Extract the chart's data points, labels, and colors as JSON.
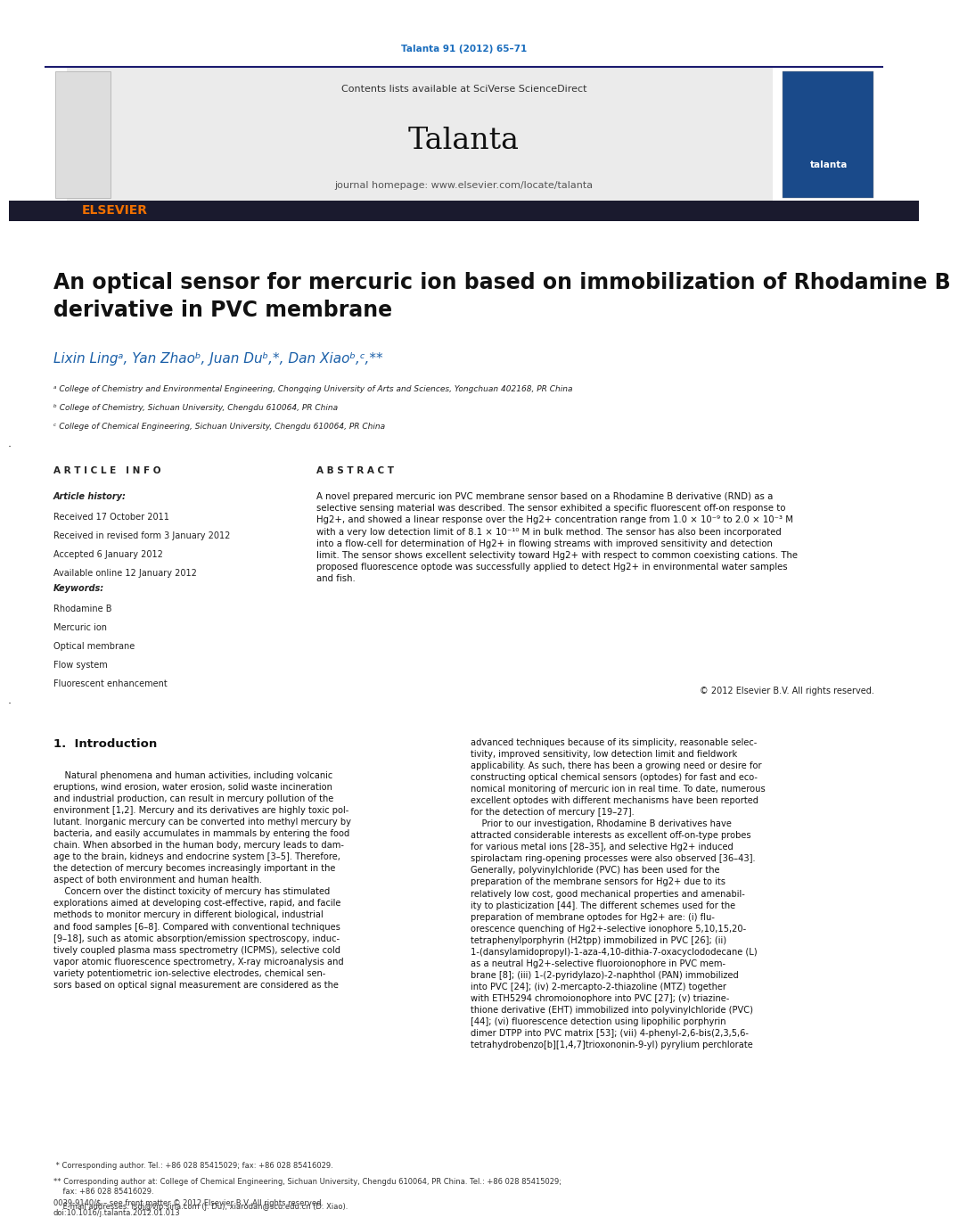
{
  "page_width": 10.21,
  "page_height": 13.51,
  "bg_color": "#ffffff",
  "journal_cite": "Talanta 91 (2012) 65–71",
  "journal_cite_color": "#1a6dbd",
  "header_bg": "#ebebeb",
  "header_text_plain": "Contents lists available at ",
  "header_sciverse": "SciVerse ScienceDirect",
  "header_sciverse_color": "#1a6dbd",
  "journal_name": "Talanta",
  "journal_homepage_plain": "journal homepage: ",
  "journal_homepage_url": "www.elsevier.com/locate/talanta",
  "journal_homepage_url_color": "#1a6dbd",
  "dark_bar_color": "#1a1a2e",
  "elsevier_color": "#f07000",
  "title": "An optical sensor for mercuric ion based on immobilization of Rhodamine B\nderivative in PVC membrane",
  "title_fontsize": 17,
  "authors_line": "Lixin Lingᵃ, Yan Zhaoᵇ, Juan Duᵇ,*, Dan Xiaoᵇ,ᶜ,**",
  "affil_a": "ᵃ College of Chemistry and Environmental Engineering, Chongqing University of Arts and Sciences, Yongchuan 402168, PR China",
  "affil_b": "ᵇ College of Chemistry, Sichuan University, Chengdu 610064, PR China",
  "affil_c": "ᶜ College of Chemical Engineering, Sichuan University, Chengdu 610064, PR China",
  "section_article_info": "A R T I C L E   I N F O",
  "section_abstract": "A B S T R A C T",
  "article_history_label": "Article history:",
  "received1": "Received 17 October 2011",
  "received2": "Received in revised form 3 January 2012",
  "accepted": "Accepted 6 January 2012",
  "available": "Available online 12 January 2012",
  "keywords_label": "Keywords:",
  "kw1": "Rhodamine B",
  "kw2": "Mercuric ion",
  "kw3": "Optical membrane",
  "kw4": "Flow system",
  "kw5": "Fluorescent enhancement",
  "abstract_text": "A novel prepared mercuric ion PVC membrane sensor based on a Rhodamine B derivative (RND) as a\nselective sensing material was described. The sensor exhibited a specific fluorescent off-on response to\nHg2+, and showed a linear response over the Hg2+ concentration range from 1.0 × 10⁻⁹ to 2.0 × 10⁻³ M\nwith a very low detection limit of 8.1 × 10⁻¹⁰ M in bulk method. The sensor has also been incorporated\ninto a flow-cell for determination of Hg2+ in flowing streams with improved sensitivity and detection\nlimit. The sensor shows excellent selectivity toward Hg2+ with respect to common coexisting cations. The\nproposed fluorescence optode was successfully applied to detect Hg2+ in environmental water samples\nand fish.",
  "copyright": "© 2012 Elsevier B.V. All rights reserved.",
  "intro_heading": "1.  Introduction",
  "intro_col1": "    Natural phenomena and human activities, including volcanic\neruptions, wind erosion, water erosion, solid waste incineration\nand industrial production, can result in mercury pollution of the\nenvironment [1,2]. Mercury and its derivatives are highly toxic pol-\nlutant. Inorganic mercury can be converted into methyl mercury by\nbacteria, and easily accumulates in mammals by entering the food\nchain. When absorbed in the human body, mercury leads to dam-\nage to the brain, kidneys and endocrine system [3–5]. Therefore,\nthe detection of mercury becomes increasingly important in the\naspect of both environment and human health.\n    Concern over the distinct toxicity of mercury has stimulated\nexplorations aimed at developing cost-effective, rapid, and facile\nmethods to monitor mercury in different biological, industrial\nand food samples [6–8]. Compared with conventional techniques\n[9–18], such as atomic absorption/emission spectroscopy, induc-\ntively coupled plasma mass spectrometry (ICPMS), selective cold\nvapor atomic fluorescence spectrometry, X-ray microanalysis and\nvariety potentiometric ion-selective electrodes, chemical sen-\nsors based on optical signal measurement are considered as the",
  "intro_col2": "advanced techniques because of its simplicity, reasonable selec-\ntivity, improved sensitivity, low detection limit and fieldwork\napplicability. As such, there has been a growing need or desire for\nconstructing optical chemical sensors (optodes) for fast and eco-\nnomical monitoring of mercuric ion in real time. To date, numerous\nexcellent optodes with different mechanisms have been reported\nfor the detection of mercury [19–27].\n    Prior to our investigation, Rhodamine B derivatives have\nattracted considerable interests as excellent off-on-type probes\nfor various metal ions [28–35], and selective Hg2+ induced\nspirolactam ring-opening processes were also observed [36–43].\nGenerally, polyvinylchloride (PVC) has been used for the\npreparation of the membrane sensors for Hg2+ due to its\nrelatively low cost, good mechanical properties and amenabil-\nity to plasticization [44]. The different schemes used for the\npreparation of membrane optodes for Hg2+ are: (i) flu-\norescence quenching of Hg2+-selective ionophore 5,10,15,20-\ntetraphenylporphyrin (H2tpp) immobilized in PVC [26]; (ii)\n1-(dansylamidopropyl)-1-aza-4,10-dithia-7-oxacyclododecane (L)\nas a neutral Hg2+-selective fluoroionophore in PVC mem-\nbrane [8]; (iii) 1-(2-pyridylazo)-2-naphthol (PAN) immobilized\ninto PVC [24]; (iv) 2-mercapto-2-thiazoline (MTZ) together\nwith ETH5294 chromoionophore into PVC [27]; (v) triazine-\nthione derivative (EHT) immobilized into polyvinylchloride (PVC)\n[44]; (vi) fluorescence detection using lipophilic porphyrin\ndimer DTPP into PVC matrix [53]; (vii) 4-phenyl-2,6-bis(2,3,5,6-\ntetrahydrobenzo[b][1,4,7]trioxononin-9-yl) pyrylium perchlorate",
  "footnote": "0039-9140/$ – see front matter © 2012 Elsevier B.V. All rights reserved.\ndoi:10.1016/j.talanta.2012.01.013",
  "footnote_star1": " * Corresponding author. Tel.: +86 028 85415029; fax: +86 028 85416029.",
  "footnote_star2": "** Corresponding author at: College of Chemical Engineering, Sichuan University, Chengdu 610064, PR China. Tel.: +86 028 85415029;\n    fax: +86 028 85416029.",
  "footnote_email": "    E-mail addresses: lsdj@vip.sina.com (J. Du), xiarodan@scu.edu.cn (D. Xiao)."
}
